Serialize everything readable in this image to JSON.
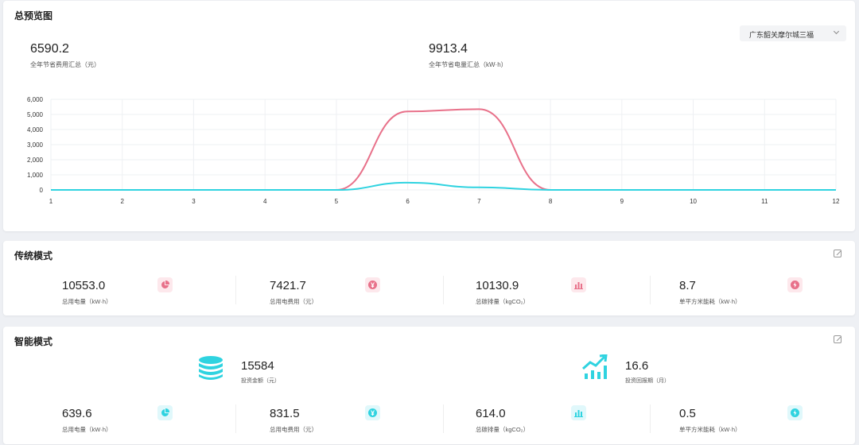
{
  "overview": {
    "title": "总预览图",
    "location_select": "广东韶关摩尔城三福",
    "stats": [
      {
        "value": "6590.2",
        "label": "全年节省费用汇总（元）"
      },
      {
        "value": "9913.4",
        "label": "全年节省电量汇总（kW·h）"
      }
    ]
  },
  "chart_data": {
    "type": "line",
    "x": [
      1,
      2,
      3,
      4,
      5,
      6,
      7,
      8,
      9,
      10,
      11,
      12
    ],
    "x_tick_labels": [
      "1",
      "2",
      "3",
      "4",
      "5",
      "6",
      "7",
      "8",
      "9",
      "10",
      "11",
      "12"
    ],
    "y_tick_labels": [
      "0",
      "1,000",
      "2,000",
      "3,000",
      "4,000",
      "5,000",
      "6,000"
    ],
    "ylim": [
      0,
      6000
    ],
    "grid": true,
    "series": [
      {
        "color": "#e8718a",
        "values": [
          0,
          0,
          0,
          0,
          0,
          5200,
          5350,
          0,
          0,
          0,
          0,
          0
        ]
      },
      {
        "color": "#2fd3e0",
        "values": [
          0,
          0,
          0,
          0,
          0,
          480,
          170,
          0,
          0,
          0,
          0,
          0
        ]
      }
    ]
  },
  "traditional": {
    "title": "传统模式",
    "metrics": [
      {
        "value": "10553.0",
        "label": "总用电量（kW·h）",
        "icon": "pie-chart-icon"
      },
      {
        "value": "7421.7",
        "label": "总用电费用（元）",
        "icon": "yen-icon"
      },
      {
        "value": "10130.9",
        "label": "总碳排量（kgCO₂）",
        "icon": "bar-chart-icon"
      },
      {
        "value": "8.7",
        "label": "单平方米能耗（kW·h）",
        "icon": "lightning-icon"
      }
    ]
  },
  "smart": {
    "title": "智能模式",
    "investment": {
      "value": "15584",
      "label": "投资金额（元）",
      "icon": "coin-stack-icon"
    },
    "payback": {
      "value": "16.6",
      "label": "投资回报期（月）",
      "icon": "trend-up-icon"
    },
    "metrics": [
      {
        "value": "639.6",
        "label": "总用电量（kW·h）",
        "icon": "pie-chart-icon"
      },
      {
        "value": "831.5",
        "label": "总用电费用（元）",
        "icon": "yen-icon"
      },
      {
        "value": "614.0",
        "label": "总碳排量（kgCO₂）",
        "icon": "bar-chart-icon"
      },
      {
        "value": "0.5",
        "label": "单平方米能耗（kW·h）",
        "icon": "lightning-icon"
      }
    ]
  },
  "colors": {
    "pink": "#e8718a",
    "cyan": "#2fd3e0"
  }
}
